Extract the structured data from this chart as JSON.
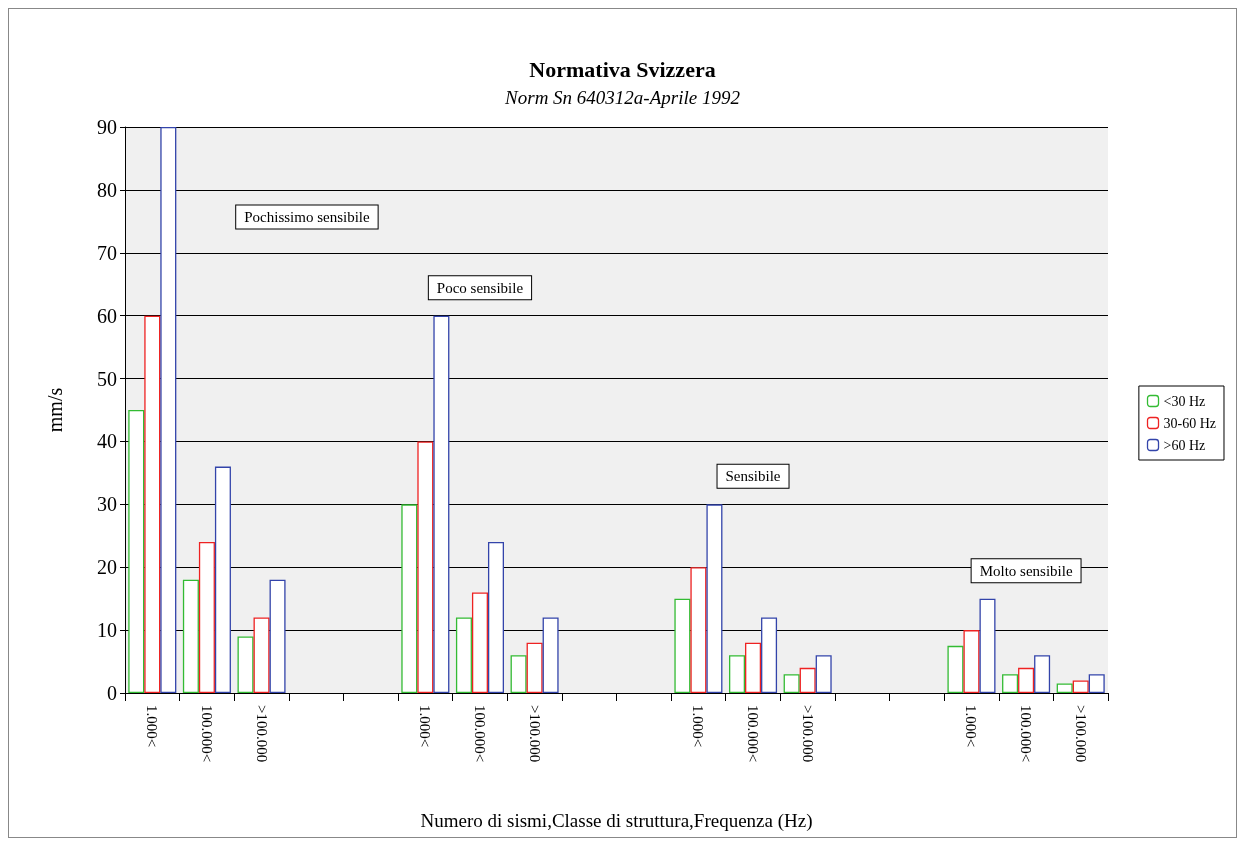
{
  "chart_data": {
    "type": "bar",
    "title": "Normativa Svizzera",
    "subtitle": "Norm Sn 640312a-Aprile 1992",
    "xlabel": "Numero di sismi,Classe di struttura,Frequenza (Hz)",
    "ylabel": "mm/s",
    "categories": [
      "1.000<",
      "100.000<",
      ">100.000",
      null,
      null,
      "1.000<",
      "100.000<",
      ">100.000",
      null,
      null,
      "1.000<",
      "100.000<",
      ">100.000",
      null,
      null,
      "1.000<",
      "100.000<",
      ">100.000"
    ],
    "series": [
      {
        "name": "<30 Hz",
        "color": "#33bb33",
        "values": [
          45,
          18,
          9,
          null,
          null,
          30,
          12,
          6,
          null,
          null,
          15,
          6,
          3,
          null,
          null,
          7.5,
          3,
          1.5
        ]
      },
      {
        "name": "30-60 Hz",
        "color": "#ee2222",
        "values": [
          60,
          24,
          12,
          null,
          null,
          40,
          16,
          8,
          null,
          null,
          20,
          8,
          4,
          null,
          null,
          10,
          4,
          2
        ]
      },
      {
        "name": ">60 Hz",
        "color": "#3344aa",
        "values": [
          90,
          36,
          18,
          null,
          null,
          60,
          24,
          12,
          null,
          null,
          30,
          12,
          6,
          null,
          null,
          15,
          6,
          3
        ]
      }
    ],
    "ylim": [
      0,
      90
    ],
    "yticks": [
      0,
      10,
      20,
      30,
      40,
      50,
      60,
      70,
      80,
      90
    ],
    "grid": "y",
    "legend": "right",
    "annotations": [
      "Pochissimo sensibile",
      "Poco sensibile",
      "Sensibile",
      "Molto sensibile"
    ]
  }
}
